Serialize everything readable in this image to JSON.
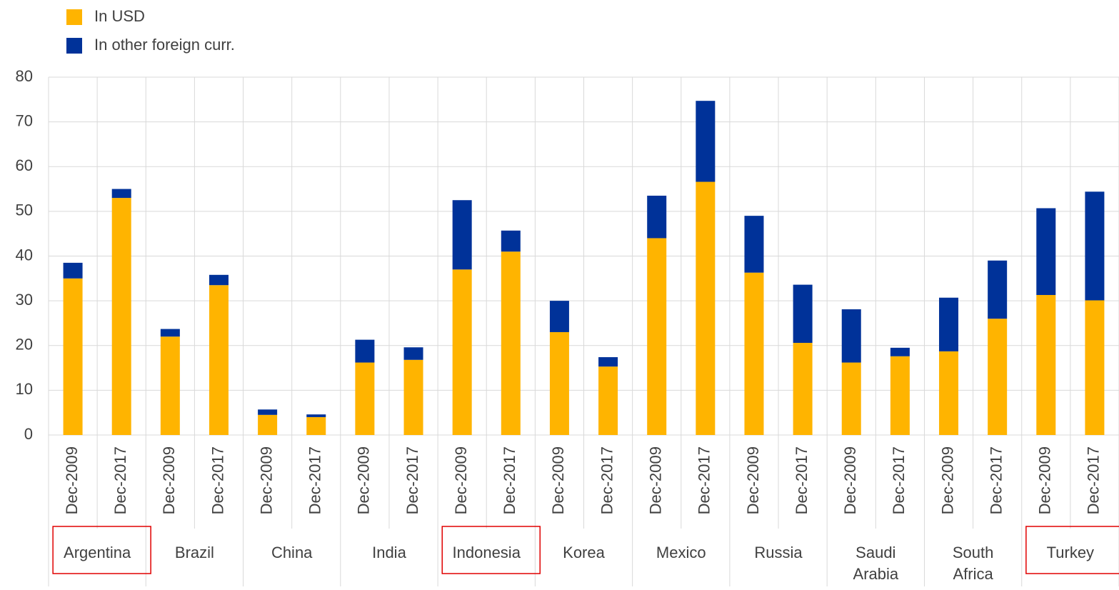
{
  "chart_data": {
    "type": "stacked-bar",
    "categories": [
      "Dec-2009",
      "Dec-2017",
      "Dec-2009",
      "Dec-2017",
      "Dec-2009",
      "Dec-2017",
      "Dec-2009",
      "Dec-2017",
      "Dec-2009",
      "Dec-2017",
      "Dec-2009",
      "Dec-2017",
      "Dec-2009",
      "Dec-2017",
      "Dec-2009",
      "Dec-2017",
      "Dec-2009",
      "Dec-2017",
      "Dec-2009",
      "Dec-2017",
      "Dec-2009",
      "Dec-2017"
    ],
    "groups": [
      {
        "name": "Argentina",
        "highlight": true
      },
      {
        "name": "Brazil",
        "highlight": false
      },
      {
        "name": "China",
        "highlight": false
      },
      {
        "name": "India",
        "highlight": false
      },
      {
        "name": "Indonesia",
        "highlight": true
      },
      {
        "name": "Korea",
        "highlight": false
      },
      {
        "name": "Mexico",
        "highlight": false
      },
      {
        "name": "Russia",
        "highlight": false
      },
      {
        "name": "Saudi Arabia",
        "highlight": false
      },
      {
        "name": "South Africa",
        "highlight": false
      },
      {
        "name": "Turkey",
        "highlight": true
      }
    ],
    "series": [
      {
        "name": "In USD",
        "color": "#ffb400",
        "values": [
          35,
          53,
          22,
          33.5,
          4.5,
          4,
          16.2,
          16.8,
          37,
          41,
          23,
          15.3,
          44,
          56.6,
          36.3,
          20.6,
          16.2,
          17.6,
          18.7,
          26,
          31.3,
          30.1
        ]
      },
      {
        "name": "In other foreign curr.",
        "color": "#003299",
        "values": [
          3.5,
          2,
          1.7,
          2.3,
          1.2,
          0.6,
          5.1,
          2.8,
          15.5,
          4.7,
          7,
          2.1,
          9.5,
          18.1,
          12.7,
          13,
          11.9,
          1.9,
          12,
          13,
          19.4,
          24.3
        ]
      }
    ],
    "ylim": [
      0,
      80
    ],
    "yticks": [
      0,
      10,
      20,
      30,
      40,
      50,
      60,
      70,
      80
    ],
    "grid": true,
    "highlight_color": "#e00000"
  }
}
